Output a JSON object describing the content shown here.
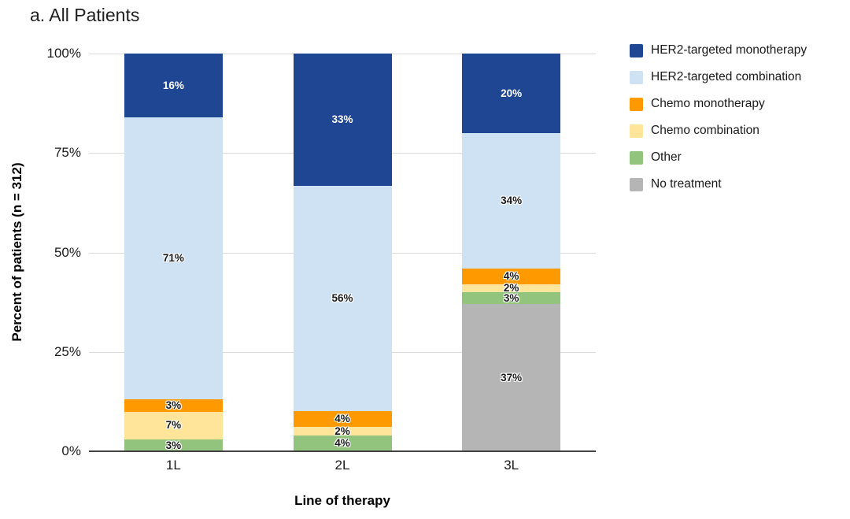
{
  "title": "a. All Patients",
  "chart_data": {
    "type": "bar",
    "stacked": true,
    "title": "a. All Patients",
    "categories": [
      "1L",
      "2L",
      "3L"
    ],
    "series": [
      {
        "name": "HER2-targeted monotherapy",
        "color": "#1f4693",
        "label_color": "#ffffff",
        "values": [
          16,
          33,
          20
        ]
      },
      {
        "name": "HER2-targeted combination",
        "color": "#cfe2f3",
        "label_color": "#1a1a1a",
        "values": [
          71,
          56,
          34
        ]
      },
      {
        "name": "Chemo monotherapy",
        "color": "#ff9900",
        "label_color": "#1a1a1a",
        "values": [
          3,
          4,
          4
        ]
      },
      {
        "name": "Chemo combination",
        "color": "#ffe599",
        "label_color": "#1a1a1a",
        "values": [
          7,
          2,
          2
        ]
      },
      {
        "name": "Other",
        "color": "#93c47d",
        "label_color": "#1a1a1a",
        "values": [
          3,
          4,
          3
        ]
      },
      {
        "name": "No treatment",
        "color": "#b5b5b5",
        "label_color": "#1a1a1a",
        "values": [
          0,
          0,
          37
        ]
      }
    ],
    "xlabel": "Line of therapy",
    "ylabel": "Percent of patients (n = 312)",
    "y_ticks": [
      "0%",
      "25%",
      "50%",
      "75%",
      "100%"
    ],
    "ylim": [
      0,
      100
    ],
    "value_suffix": "%",
    "grid": true,
    "legend_position": "right",
    "gridline_color": "#dadada",
    "axis_line_color": "#424242"
  }
}
